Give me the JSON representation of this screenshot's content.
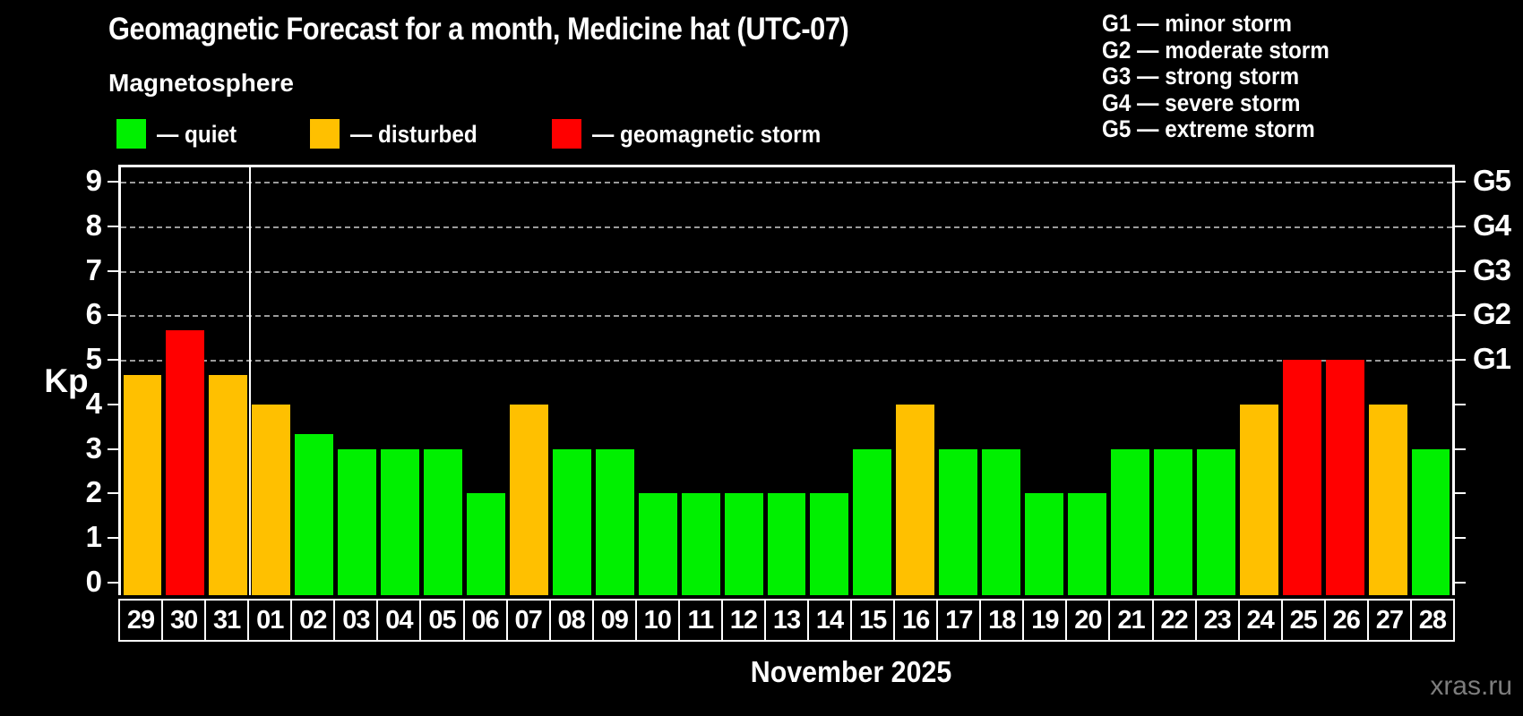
{
  "header": {
    "title": "Geomagnetic Forecast for a month, Medicine hat (UTC-07)",
    "subtitle": "Magnetosphere"
  },
  "legend": {
    "items": [
      {
        "state": "quiet",
        "label": "— quiet"
      },
      {
        "state": "disturbed",
        "label": "— disturbed"
      },
      {
        "state": "storm",
        "label": "— geomagnetic storm"
      }
    ]
  },
  "g_legend": {
    "items": [
      {
        "code": "G1",
        "label": "G1 — minor storm"
      },
      {
        "code": "G2",
        "label": "G2 — moderate storm"
      },
      {
        "code": "G3",
        "label": "G3 — strong storm"
      },
      {
        "code": "G4",
        "label": "G4 — severe storm"
      },
      {
        "code": "G5",
        "label": "G5 — extreme storm"
      }
    ]
  },
  "axes": {
    "y_label": "Kp",
    "y_ticks": [
      0,
      1,
      2,
      3,
      4,
      5,
      6,
      7,
      8,
      9
    ],
    "right_labels": {
      "5": "G1",
      "6": "G2",
      "7": "G3",
      "8": "G4",
      "9": "G5"
    }
  },
  "footer": {
    "month_label": "November 2025",
    "watermark": "xras.ru"
  },
  "colors": {
    "quiet": "#00f000",
    "disturbed": "#ffc000",
    "storm": "#ff0000",
    "grid": "#9a9a9a",
    "axis": "#ffffff",
    "watermark": "#7d7d7d",
    "background": "#000000"
  },
  "chart_data": {
    "type": "bar",
    "title": "Geomagnetic Forecast for a month, Medicine hat (UTC-07)",
    "xlabel": "November 2025",
    "ylabel": "Kp",
    "ylim": [
      0,
      9.4
    ],
    "grid": "dashed horizontal at Kp 5-9 only",
    "legend_position": "top-left",
    "g_scale": {
      "G1": 5,
      "G2": 6,
      "G3": 7,
      "G4": 8,
      "G5": 9
    },
    "categories": [
      "29",
      "30",
      "31",
      "01",
      "02",
      "03",
      "04",
      "05",
      "06",
      "07",
      "08",
      "09",
      "10",
      "11",
      "12",
      "13",
      "14",
      "15",
      "16",
      "17",
      "18",
      "19",
      "20",
      "21",
      "22",
      "23",
      "24",
      "25",
      "26",
      "27",
      "28"
    ],
    "values": [
      4.67,
      5.67,
      4.67,
      4,
      3.33,
      3,
      3,
      3,
      2,
      4,
      3,
      3,
      2,
      2,
      2,
      2,
      2,
      3,
      4,
      3,
      3,
      2,
      2,
      3,
      3,
      3,
      4,
      5,
      5,
      4,
      3
    ],
    "states": [
      "disturbed",
      "storm",
      "disturbed",
      "disturbed",
      "quiet",
      "quiet",
      "quiet",
      "quiet",
      "quiet",
      "disturbed",
      "quiet",
      "quiet",
      "quiet",
      "quiet",
      "quiet",
      "quiet",
      "quiet",
      "quiet",
      "disturbed",
      "quiet",
      "quiet",
      "quiet",
      "quiet",
      "quiet",
      "quiet",
      "quiet",
      "disturbed",
      "storm",
      "storm",
      "disturbed",
      "quiet"
    ],
    "month_separator_after_index": 2
  }
}
